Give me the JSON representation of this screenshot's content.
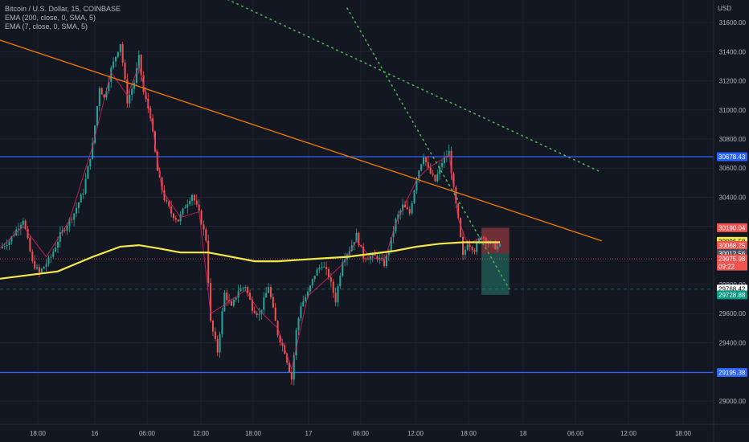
{
  "header": {
    "title": "Bitcoin / U.S. Dollar, 15, COINBASE",
    "indicators": [
      "EMA (200, close, 0, SMA, 5)",
      "EMA (7, close, 0, SMA, 5)"
    ],
    "currency": "USD"
  },
  "colors": {
    "background": "#131722",
    "grid": "#1f2333",
    "up": "#26a69a",
    "down": "#ef5350",
    "ema200": "#f5e94a",
    "ema7": "#e91e63",
    "trendline": "#f57c00",
    "horizontal_level": "#2962ff",
    "dotted_trend": "#4caf50",
    "stop_zone": "#8d3a3e",
    "target_zone": "#1f5e58"
  },
  "chart_data": {
    "type": "candlestick",
    "symbol": "Bitcoin / U.S. Dollar",
    "interval": "15",
    "exchange": "COINBASE",
    "y_axis": {
      "ticks": [
        "31600.00",
        "31400.00",
        "31200.00",
        "31000.00",
        "30800.00",
        "30600.00",
        "30400.00",
        "30200.00",
        "29800.00",
        "29600.00",
        "29400.00",
        "29200.00",
        "29000.00"
      ],
      "range": [
        28850,
        31750
      ]
    },
    "x_axis": {
      "ticks": [
        "18:00",
        "16",
        "06:00",
        "12:00",
        "18:00",
        "17",
        "06:00",
        "12:00",
        "18:00",
        "18",
        "06:00",
        "12:00",
        "18:00"
      ]
    },
    "price_path": [
      [
        0,
        30050
      ],
      [
        4,
        30100
      ],
      [
        10,
        30250
      ],
      [
        14,
        29950
      ],
      [
        17,
        29880
      ],
      [
        22,
        29990
      ],
      [
        26,
        30140
      ],
      [
        32,
        30290
      ],
      [
        36,
        30440
      ],
      [
        40,
        30760
      ],
      [
        43,
        31160
      ],
      [
        45,
        31080
      ],
      [
        48,
        31280
      ],
      [
        52,
        31460
      ],
      [
        55,
        31060
      ],
      [
        58,
        31190
      ],
      [
        60,
        31360
      ],
      [
        62,
        31120
      ],
      [
        65,
        30960
      ],
      [
        68,
        30580
      ],
      [
        71,
        30390
      ],
      [
        74,
        30290
      ],
      [
        77,
        30240
      ],
      [
        80,
        30340
      ],
      [
        83,
        30420
      ],
      [
        86,
        30290
      ],
      [
        89,
        30110
      ],
      [
        91,
        29540
      ],
      [
        94,
        29340
      ],
      [
        97,
        29740
      ],
      [
        100,
        29640
      ],
      [
        103,
        29760
      ],
      [
        106,
        29790
      ],
      [
        109,
        29640
      ],
      [
        112,
        29590
      ],
      [
        116,
        29790
      ],
      [
        120,
        29460
      ],
      [
        123,
        29340
      ],
      [
        126,
        29150
      ],
      [
        128,
        29480
      ],
      [
        130,
        29660
      ],
      [
        133,
        29740
      ],
      [
        136,
        29870
      ],
      [
        139,
        29940
      ],
      [
        142,
        29860
      ],
      [
        145,
        29690
      ],
      [
        148,
        29970
      ],
      [
        151,
        30040
      ],
      [
        154,
        30140
      ],
      [
        157,
        29990
      ],
      [
        160,
        29990
      ],
      [
        163,
        29990
      ],
      [
        166,
        29940
      ],
      [
        168,
        30040
      ],
      [
        171,
        30240
      ],
      [
        174,
        30340
      ],
      [
        177,
        30290
      ],
      [
        180,
        30540
      ],
      [
        183,
        30690
      ],
      [
        185,
        30590
      ],
      [
        188,
        30510
      ],
      [
        191,
        30640
      ],
      [
        194,
        30710
      ],
      [
        196,
        30450
      ],
      [
        198,
        30240
      ],
      [
        200,
        29990
      ],
      [
        202,
        30090
      ],
      [
        205,
        30040
      ],
      [
        208,
        30140
      ],
      [
        211,
        30090
      ],
      [
        214,
        30060
      ],
      [
        216,
        30060
      ]
    ],
    "ema200_path": [
      [
        0,
        29840
      ],
      [
        25,
        29890
      ],
      [
        40,
        29990
      ],
      [
        52,
        30060
      ],
      [
        60,
        30070
      ],
      [
        68,
        30050
      ],
      [
        78,
        30020
      ],
      [
        90,
        30020
      ],
      [
        100,
        29990
      ],
      [
        110,
        29960
      ],
      [
        120,
        29960
      ],
      [
        130,
        29970
      ],
      [
        140,
        29980
      ],
      [
        150,
        29990
      ],
      [
        160,
        30010
      ],
      [
        170,
        30030
      ],
      [
        180,
        30060
      ],
      [
        190,
        30080
      ],
      [
        200,
        30090
      ],
      [
        210,
        30090
      ],
      [
        216,
        30090
      ]
    ],
    "ema7_path": [
      [
        0,
        30050
      ],
      [
        10,
        30200
      ],
      [
        20,
        29990
      ],
      [
        30,
        30240
      ],
      [
        40,
        30750
      ],
      [
        48,
        31260
      ],
      [
        55,
        31100
      ],
      [
        60,
        31300
      ],
      [
        65,
        30980
      ],
      [
        70,
        30450
      ],
      [
        78,
        30260
      ],
      [
        86,
        30300
      ],
      [
        91,
        29600
      ],
      [
        96,
        29650
      ],
      [
        106,
        29760
      ],
      [
        112,
        29620
      ],
      [
        120,
        29500
      ],
      [
        126,
        29220
      ],
      [
        133,
        29720
      ],
      [
        142,
        29850
      ],
      [
        148,
        29940
      ],
      [
        154,
        30100
      ],
      [
        160,
        29990
      ],
      [
        166,
        29960
      ],
      [
        171,
        30220
      ],
      [
        180,
        30520
      ],
      [
        185,
        30600
      ],
      [
        194,
        30690
      ],
      [
        198,
        30250
      ],
      [
        202,
        30080
      ],
      [
        208,
        30120
      ],
      [
        216,
        30070
      ]
    ],
    "trendline": {
      "from": [
        -2,
        31490
      ],
      "to": [
        260,
        30100
      ]
    },
    "dotted_trend_1": {
      "from": [
        86,
        31850
      ],
      "to": [
        260,
        30570
      ]
    },
    "dotted_trend_2": {
      "from": [
        150,
        31700
      ],
      "to": [
        220,
        29770
      ]
    },
    "horizontal_levels": [
      30678.43,
      29195.38
    ],
    "position_tool": {
      "x_start": 208,
      "x_end": 220,
      "top": 30190.04,
      "entry": 30012.56,
      "bottom": 29728.88
    },
    "current_price": 29975.98,
    "price_tags": [
      {
        "value": "30678.43",
        "price": 30678.43,
        "bg": "#2962ff",
        "fg": "#ffffff"
      },
      {
        "value": "30190.04",
        "price": 30190.04,
        "bg": "#ef5350",
        "fg": "#ffffff"
      },
      {
        "value": "30096.58",
        "price": 30096.58,
        "bg": "#f5e94a",
        "fg": "#000000"
      },
      {
        "value": "30068.25",
        "price": 30068.25,
        "bg": "#ef5350",
        "fg": "#ffffff"
      },
      {
        "value": "30012.56",
        "price": 30012.56,
        "bg": "#4a4e5a",
        "fg": "#ffffff"
      },
      {
        "value": "29975.98",
        "price": 29975.98,
        "bg": "#ef5350",
        "fg": "#ffffff",
        "sub": "09:22"
      },
      {
        "value": "29768.42",
        "price": 29768.42,
        "bg": "#ffffff",
        "fg": "#000000"
      },
      {
        "value": "29728.88",
        "price": 29728.88,
        "bg": "#089981",
        "fg": "#ffffff"
      },
      {
        "value": "29195.38",
        "price": 29195.38,
        "bg": "#2962ff",
        "fg": "#ffffff"
      }
    ]
  }
}
